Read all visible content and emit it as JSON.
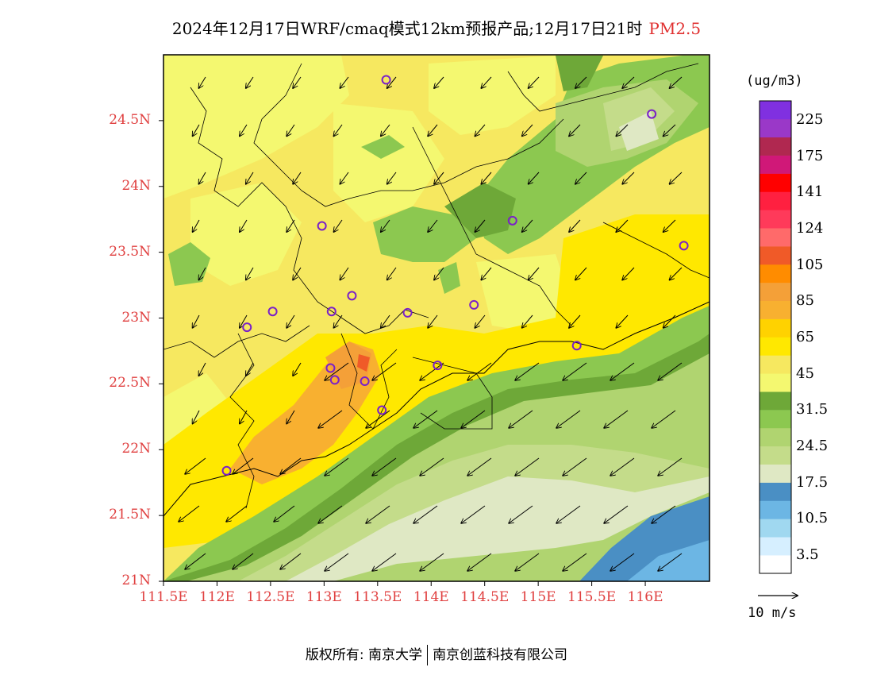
{
  "title": {
    "main": "2024年12月17日WRF/cmaq模式12km预报产品;12月17日21时",
    "variable": "PM2.5"
  },
  "map": {
    "lon_range": [
      111.5,
      116.6
    ],
    "lat_range": [
      21.0,
      25.0
    ],
    "lat_ticks": [
      "24.5N",
      "24N",
      "23.5N",
      "23N",
      "22.5N",
      "22N",
      "21.5N",
      "21N"
    ],
    "lat_values": [
      24.5,
      24.0,
      23.5,
      23.0,
      22.5,
      22.0,
      21.5,
      21.0
    ],
    "lon_ticks": [
      "111.5E",
      "112E",
      "112.5E",
      "113E",
      "113.5E",
      "114E",
      "114.5E",
      "115E",
      "115.5E",
      "116E"
    ],
    "lon_values": [
      111.5,
      112.0,
      112.5,
      113.0,
      113.5,
      114.0,
      114.5,
      115.0,
      115.5,
      116.0
    ],
    "stations": [
      [
        113.58,
        24.81
      ],
      [
        116.06,
        24.55
      ],
      [
        112.98,
        23.7
      ],
      [
        114.76,
        23.74
      ],
      [
        116.36,
        23.55
      ],
      [
        112.28,
        22.93
      ],
      [
        113.1,
        22.53
      ],
      [
        112.52,
        23.05
      ],
      [
        113.07,
        23.05
      ],
      [
        113.26,
        23.17
      ],
      [
        113.78,
        23.04
      ],
      [
        114.4,
        23.1
      ],
      [
        115.36,
        22.79
      ],
      [
        113.06,
        22.62
      ],
      [
        113.38,
        22.52
      ],
      [
        114.06,
        22.64
      ],
      [
        113.54,
        22.3
      ],
      [
        112.09,
        21.84
      ]
    ]
  },
  "colorbar": {
    "unit": "(ug/m3)",
    "colors": [
      "#ffffff",
      "#d6efff",
      "#a0d8f0",
      "#6cb6e4",
      "#4a8fc4",
      "#dfe8c4",
      "#c4dc8a",
      "#b0d470",
      "#8cc850",
      "#6ea838",
      "#f4f870",
      "#f6e860",
      "#ffe800",
      "#ffd200",
      "#f8b030",
      "#f4a038",
      "#ff8c00",
      "#f05a28",
      "#ff6a6a",
      "#ff3a5a",
      "#ff2040",
      "#ff0000",
      "#d01878",
      "#b02850",
      "#9a38c8",
      "#8030e0"
    ],
    "labels": [
      "225",
      "175",
      "141",
      "124",
      "105",
      "85",
      "65",
      "45",
      "31.5",
      "24.5",
      "17.5",
      "10.5",
      "3.5"
    ]
  },
  "wind": {
    "reference_label": "10 m/s"
  },
  "footer": {
    "left": "版权所有: 南京大学",
    "right": "南京创蓝科技有限公司"
  }
}
